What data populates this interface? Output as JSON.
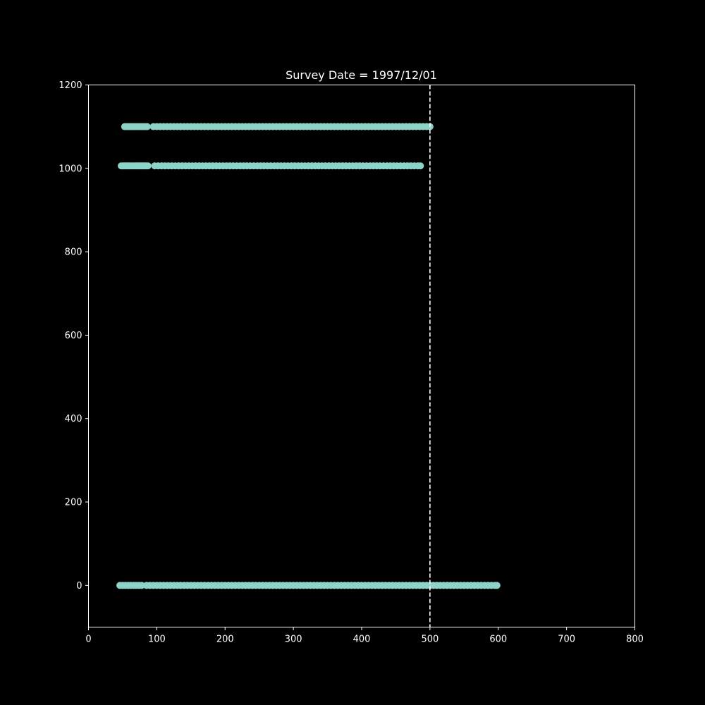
{
  "chart_data": {
    "type": "scatter",
    "title": "Survey Date = 1997/12/01",
    "xlabel": "",
    "ylabel": "",
    "xlim": [
      0,
      800
    ],
    "ylim": [
      -100,
      1200
    ],
    "x_ticks": [
      0,
      100,
      200,
      300,
      400,
      500,
      600,
      700,
      800
    ],
    "y_ticks": [
      0,
      200,
      400,
      600,
      800,
      1000,
      1200
    ],
    "x_tick_labels": [
      "0",
      "100",
      "200",
      "300",
      "400",
      "500",
      "600",
      "700",
      "800"
    ],
    "y_tick_labels": [
      "0",
      "200",
      "400",
      "600",
      "800",
      "1000",
      "1200"
    ],
    "grid": false,
    "reference_line": {
      "axis": "x",
      "value": 500,
      "style": "dashed",
      "color": "#ffffff"
    },
    "marker_color": "#8dd3c7",
    "series": [
      {
        "y": 1100,
        "x": [
          53,
          56,
          59,
          62,
          65,
          68,
          71,
          74,
          77,
          80,
          83,
          86,
          95,
          100,
          105,
          110,
          115,
          120,
          125,
          130,
          135,
          140,
          145,
          150,
          155,
          160,
          165,
          170,
          175,
          180,
          185,
          190,
          195,
          200,
          205,
          210,
          215,
          220,
          225,
          230,
          235,
          240,
          245,
          250,
          255,
          260,
          265,
          270,
          275,
          280,
          285,
          290,
          295,
          300,
          305,
          310,
          315,
          320,
          325,
          330,
          335,
          340,
          345,
          350,
          355,
          360,
          365,
          370,
          375,
          380,
          385,
          390,
          395,
          400,
          405,
          410,
          415,
          420,
          425,
          430,
          435,
          440,
          445,
          450,
          455,
          460,
          465,
          470,
          475,
          480,
          485,
          490,
          495,
          500
        ]
      },
      {
        "y": 1006,
        "x": [
          48,
          51,
          54,
          57,
          60,
          63,
          66,
          69,
          72,
          75,
          78,
          81,
          84,
          87,
          97,
          102,
          107,
          112,
          117,
          122,
          127,
          132,
          137,
          142,
          147,
          152,
          157,
          162,
          167,
          172,
          177,
          182,
          187,
          192,
          197,
          202,
          207,
          212,
          217,
          222,
          227,
          232,
          237,
          242,
          247,
          252,
          257,
          262,
          267,
          272,
          277,
          282,
          287,
          292,
          297,
          302,
          307,
          312,
          317,
          322,
          327,
          332,
          337,
          342,
          347,
          352,
          357,
          362,
          367,
          372,
          377,
          382,
          387,
          392,
          397,
          402,
          407,
          412,
          417,
          422,
          427,
          432,
          437,
          442,
          447,
          452,
          457,
          462,
          467,
          472,
          477,
          482,
          486
        ]
      },
      {
        "y": 0,
        "x": [
          46,
          50,
          54,
          58,
          62,
          66,
          70,
          74,
          78,
          85,
          90,
          95,
          100,
          105,
          110,
          115,
          120,
          125,
          130,
          135,
          140,
          145,
          150,
          155,
          160,
          165,
          170,
          175,
          180,
          185,
          190,
          195,
          200,
          205,
          210,
          215,
          220,
          225,
          230,
          235,
          240,
          245,
          250,
          255,
          260,
          265,
          270,
          275,
          280,
          285,
          290,
          295,
          300,
          305,
          310,
          315,
          320,
          325,
          330,
          335,
          340,
          345,
          350,
          355,
          360,
          365,
          370,
          375,
          380,
          385,
          390,
          395,
          400,
          405,
          410,
          415,
          420,
          425,
          430,
          435,
          440,
          445,
          450,
          455,
          460,
          465,
          470,
          475,
          480,
          485,
          490,
          495,
          500,
          505,
          510,
          515,
          520,
          525,
          530,
          535,
          540,
          545,
          550,
          555,
          560,
          565,
          570,
          575,
          580,
          585,
          590,
          595,
          598
        ]
      }
    ]
  }
}
